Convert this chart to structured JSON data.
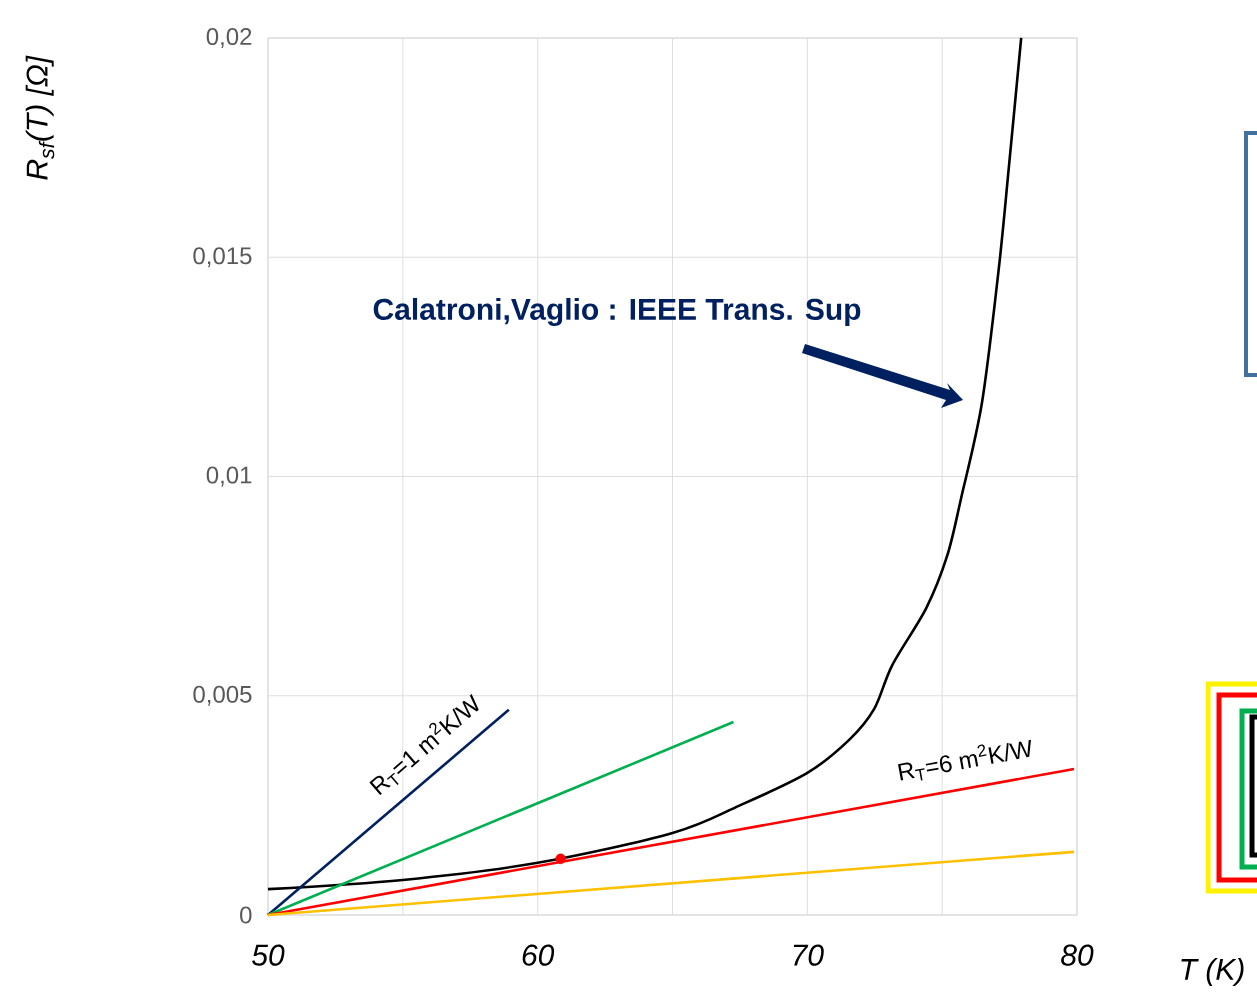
{
  "chart_data": {
    "type": "line",
    "ylabel": "*R$_{sf}$(T) [Ω]*",
    "xlabel": "*T (K)*",
    "xlim": [
      50,
      80
    ],
    "ylim": [
      0,
      0.02
    ],
    "xticks": [
      50,
      {
        "value": 55,
        "label": null
      },
      60,
      {
        "value": 65,
        "label": null
      },
      70,
      {
        "value": 75,
        "label": null
      },
      80
    ],
    "yticks": [
      {
        "value": 0,
        "label": "0"
      },
      {
        "value": 0.005,
        "label": "0,005"
      },
      {
        "value": 0.01,
        "label": "0,01"
      },
      {
        "value": 0.015,
        "label": "0,015"
      },
      {
        "value": 0.02,
        "label": "0,02"
      }
    ],
    "grid": true,
    "series": [
      {
        "color": "#000000",
        "x": [
          50,
          55,
          60,
          65,
          67.5,
          70,
          71.56,
          72.48,
          73.15,
          74.41,
          75.19,
          75.7,
          76.48,
          77.11,
          77.48,
          77.93
        ],
        "values": [
          0.00059,
          0.0008,
          0.00119,
          0.00187,
          0.0025,
          0.00324,
          0.004,
          0.0047,
          0.0057,
          0.007,
          0.0082,
          0.0095,
          0.0117,
          0.0148,
          0.0171,
          0.02
        ]
      },
      {
        "color": "#002060",
        "x": [
          50,
          58.93
        ],
        "values": [
          0,
          0.00468
        ]
      },
      {
        "color": "#00b050",
        "x": [
          50,
          67.26
        ],
        "values": [
          0,
          0.0044
        ]
      },
      {
        "color": "#ff0000",
        "x": [
          50,
          79.89
        ],
        "values": [
          0,
          0.00333
        ]
      },
      {
        "color": "#ffc000",
        "x": [
          50,
          79.89
        ],
        "values": [
          0,
          0.00144
        ]
      },
      {
        "type": "scatter",
        "marker": "circle",
        "color": "#ff0000",
        "x": [
          60.85
        ],
        "values": [
          0.00128
        ]
      }
    ],
    "annotations": [
      "R$_{T}$=1 m$^{2}$K/W",
      "R$_{T}$=6 m$^{2}$K/W",
      "**Calatroni,Vaglio : IEEE Trans. Sup**"
    ]
  }
}
